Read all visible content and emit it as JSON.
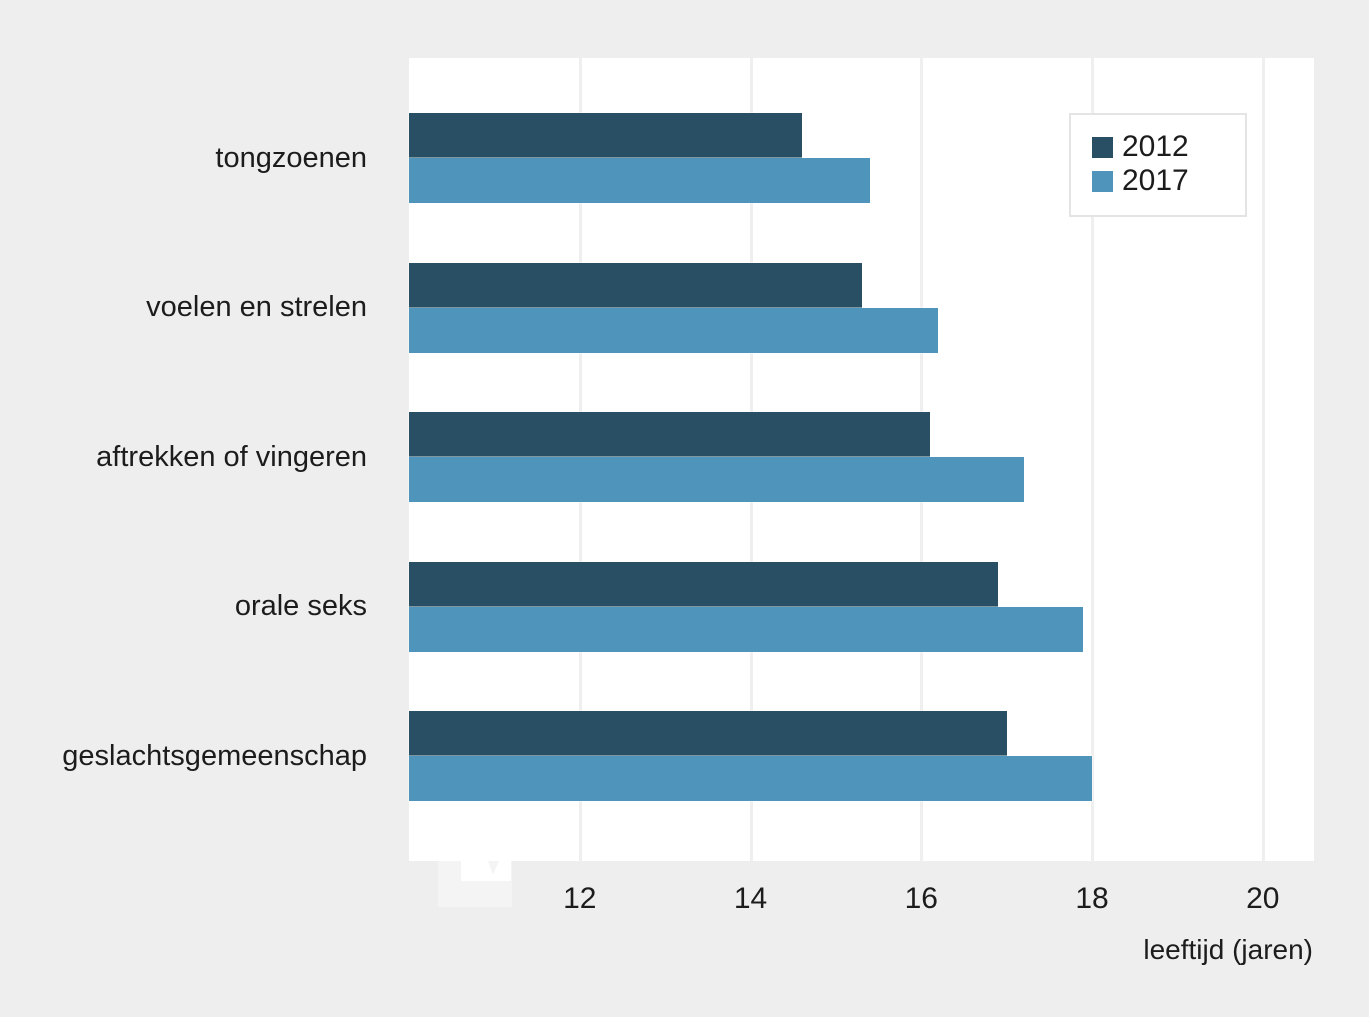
{
  "colors": {
    "page_background": "#efeeee",
    "plot_background": "#ffffff",
    "gridline": "#efefef",
    "text": "#1c1c1c",
    "legend_border": "#e4e4e4",
    "series_2012": "#294f64",
    "series_2017": "#4f94ba"
  },
  "chart_data": {
    "type": "bar",
    "orientation": "horizontal",
    "title": "",
    "xlabel": "leeftijd (jaren)",
    "ylabel": "",
    "categories": [
      "tongzoenen",
      "voelen en strelen",
      "aftrekken of vingeren",
      "orale seks",
      "geslachtsgemeenschap"
    ],
    "series": [
      {
        "name": "2012",
        "color": "#294f64",
        "values": [
          14.6,
          15.3,
          16.1,
          16.9,
          17.0
        ]
      },
      {
        "name": "2017",
        "color": "#4f94ba",
        "values": [
          15.4,
          16.2,
          17.2,
          17.9,
          18.0
        ]
      }
    ],
    "x_ticks": [
      12,
      14,
      16,
      18,
      20
    ],
    "xlim": [
      10,
      20.6
    ],
    "axis_break_at_origin": true,
    "grid": "vertical",
    "legend_position": "top-right-inside"
  }
}
